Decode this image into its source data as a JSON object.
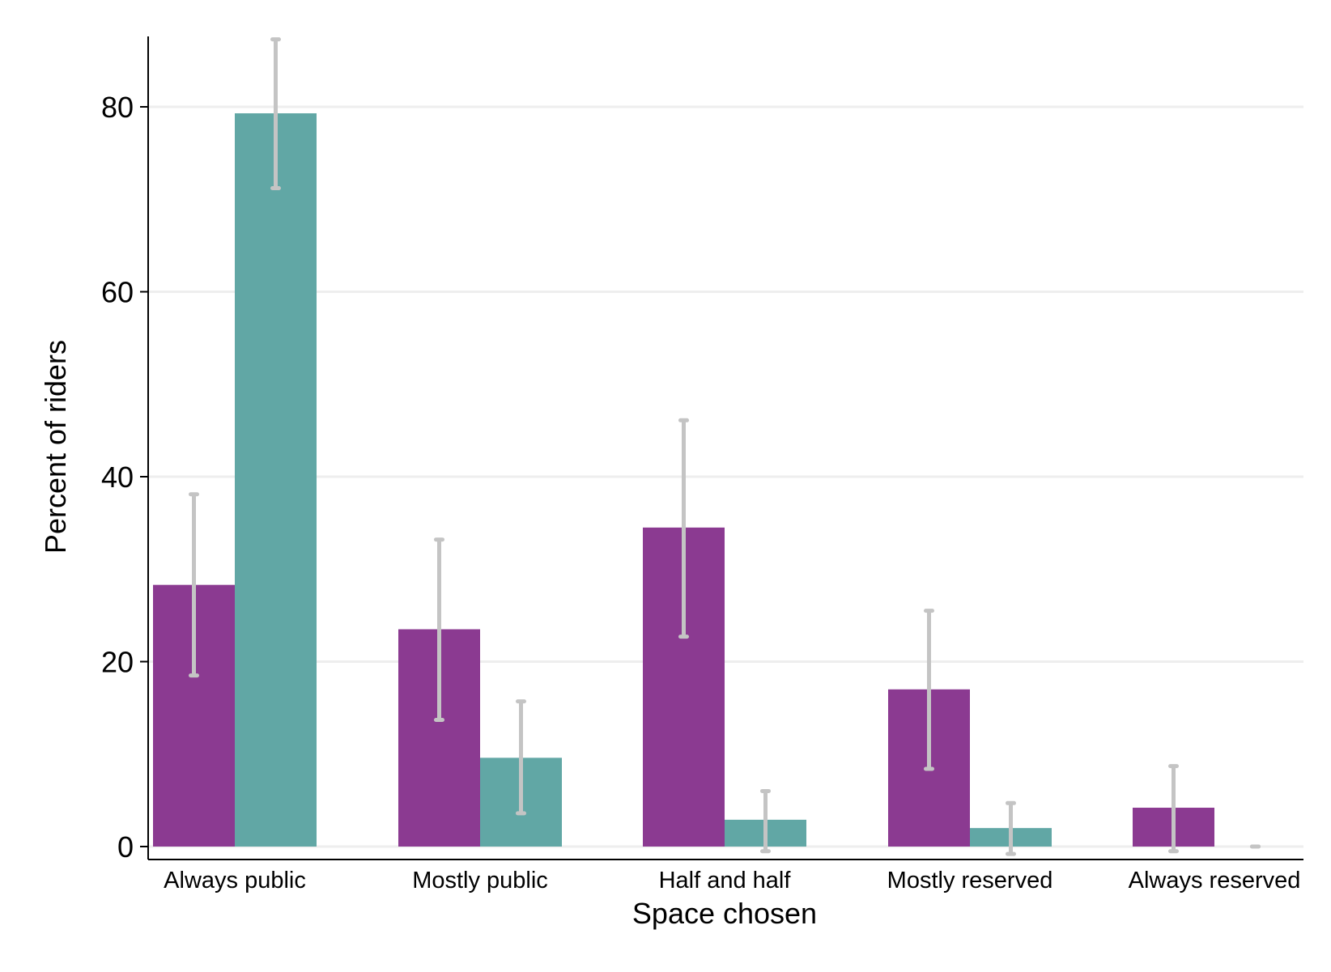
{
  "chart_data": {
    "type": "bar",
    "title": "",
    "xlabel": "Space chosen",
    "ylabel": "Percent of riders",
    "categories": [
      "Always public",
      "Mostly public",
      "Half and half",
      "Mostly reserved",
      "Always reserved"
    ],
    "series": [
      {
        "color": "#8B3A91",
        "values": [
          28.3,
          23.5,
          34.5,
          17.0,
          4.2
        ],
        "ci_low": [
          18.5,
          13.7,
          22.7,
          8.4,
          -0.5
        ],
        "ci_high": [
          38.1,
          33.2,
          46.1,
          25.5,
          8.7
        ]
      },
      {
        "color": "#61A7A5",
        "values": [
          79.3,
          9.6,
          2.9,
          2.0,
          0.0
        ],
        "ci_low": [
          71.2,
          3.6,
          -0.5,
          -0.8,
          0.0
        ],
        "ci_high": [
          87.3,
          15.7,
          6.0,
          4.7,
          0.0
        ]
      }
    ],
    "yticks": [
      0,
      20,
      40,
      60,
      80
    ],
    "ylim": [
      -1.2,
      88.5
    ],
    "grid": true,
    "legend": "none",
    "errorbar_color": "#C4C4C4",
    "gridline_color": "#EEEEEE"
  }
}
